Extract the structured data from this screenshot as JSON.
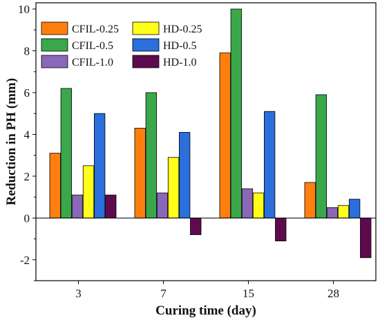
{
  "chart_data": {
    "type": "bar",
    "categories": [
      "3",
      "7",
      "15",
      "28"
    ],
    "xlabel": "Curing time (day)",
    "ylabel": "Reduction in PH (mm)",
    "ylim": [
      -3,
      10.3
    ],
    "yticks": [
      -2,
      0,
      2,
      4,
      6,
      8,
      10
    ],
    "zero_line": true,
    "legend_position": "top-left",
    "series": [
      {
        "name": "CFIL-0.25",
        "color": "#ff7f0e",
        "values": [
          3.1,
          4.3,
          7.9,
          1.7
        ]
      },
      {
        "name": "CFIL-0.5",
        "color": "#3aa84a",
        "values": [
          6.2,
          6.0,
          10.0,
          5.9
        ]
      },
      {
        "name": "CFIL-1.0",
        "color": "#8a67b8",
        "values": [
          1.1,
          1.2,
          1.4,
          0.5
        ]
      },
      {
        "name": "HD-0.25",
        "color": "#ffff19",
        "values": [
          2.5,
          2.9,
          1.2,
          0.6
        ]
      },
      {
        "name": "HD-0.5",
        "color": "#2a6fdb",
        "values": [
          5.0,
          4.1,
          5.1,
          0.9
        ]
      },
      {
        "name": "HD-1.0",
        "color": "#5e0b4e",
        "values": [
          1.1,
          -0.8,
          -1.1,
          -1.9
        ]
      }
    ]
  }
}
